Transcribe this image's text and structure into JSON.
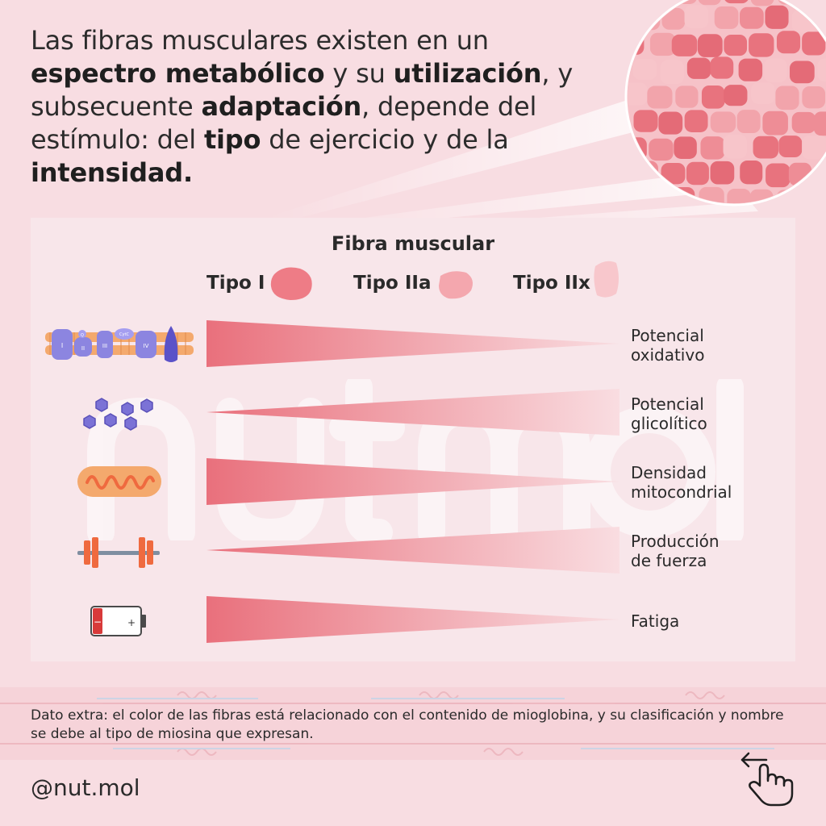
{
  "headline": {
    "segments": [
      {
        "text": "Las fibras musculares existen en un ",
        "bold": false
      },
      {
        "text": "espectro metabólico",
        "bold": true
      },
      {
        "text": " y su ",
        "bold": false
      },
      {
        "text": "utilización",
        "bold": true
      },
      {
        "text": ", y subsecuente ",
        "bold": false
      },
      {
        "text": "adaptación",
        "bold": true
      },
      {
        "text": ", depende del estímulo: del ",
        "bold": false
      },
      {
        "text": "tipo",
        "bold": true
      },
      {
        "text": " de ejercicio y de la ",
        "bold": false
      },
      {
        "text": "intensidad.",
        "bold": true
      }
    ]
  },
  "diagram": {
    "title": "Fibra muscular",
    "types": [
      "Tipo I",
      "Tipo IIa",
      "Tipo IIx"
    ],
    "type_colors": [
      "#ee7c86",
      "#f4a7ae",
      "#f8c7cc"
    ],
    "rows": [
      {
        "line1": "Potencial",
        "line2": "oxidativo",
        "direction": "decreasing",
        "icon": "electron-transport-chain-icon"
      },
      {
        "line1": "Potencial",
        "line2": "glicolítico",
        "direction": "increasing",
        "icon": "glucose-molecules-icon"
      },
      {
        "line1": "Densidad",
        "line2": "mitocondrial",
        "direction": "decreasing",
        "icon": "mitochondria-icon"
      },
      {
        "line1": "Producción",
        "line2": "de fuerza",
        "direction": "increasing",
        "icon": "barbell-icon"
      },
      {
        "line1": "Fatiga",
        "line2": "",
        "direction": "decreasing",
        "icon": "low-battery-icon"
      }
    ],
    "etc_labels": [
      "I",
      "Q",
      "II",
      "III",
      "CytC",
      "IV"
    ]
  },
  "extra": "Dato extra:  el color de las fibras está relacionado con el contenido de mioglobina, y su clasificación y nombre se debe al tipo de miosina que expresan.",
  "handle": "@nut.mol",
  "colors": {
    "background": "#f8dde2",
    "panel": "#f8e6ea",
    "wedge_dark": "#e9707c",
    "wedge_light": "#f9dde1",
    "icon_purple": "#7b72d6",
    "icon_orange": "#ef6a3f"
  }
}
